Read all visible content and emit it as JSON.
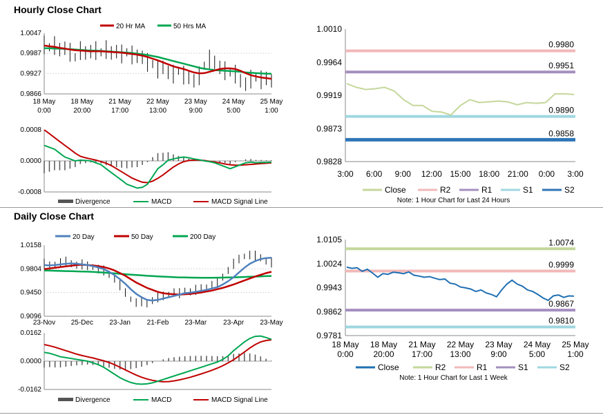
{
  "sections": {
    "hourly_title": "Hourly Close Chart",
    "daily_title": "Daily Close Chart"
  },
  "chart_data": [
    {
      "id": "hourly-price",
      "type": "line",
      "ylim": [
        0.9866,
        1.0047
      ],
      "yticks": [
        "1.0047",
        "0.9987",
        "0.9927",
        "0.9866"
      ],
      "xticks": [
        [
          "18 May",
          "0:00"
        ],
        [
          "18 May",
          "20:00"
        ],
        [
          "21 May",
          "17:00"
        ],
        [
          "22 May",
          "13:00"
        ],
        [
          "23 May",
          "9:00"
        ],
        [
          "24 May",
          "5:00"
        ],
        [
          "25 May",
          "1:00"
        ]
      ],
      "legend": [
        "20 Hr MA",
        "50 Hrs MA"
      ],
      "colors": {
        "price": "#111111",
        "ma20": "#c00000",
        "ma50": "#00a651"
      },
      "series": [
        {
          "name": "Price",
          "values": [
            1.0012,
            1.0005,
            1.001,
            0.9998,
            1.0002,
            0.999,
            0.9975,
            0.9995,
            0.9988,
            0.9992,
            0.9995,
            0.999,
            0.9998,
            0.9988,
            0.9992,
            0.9985,
            0.999,
            0.9982,
            0.9978,
            0.9975,
            0.996,
            0.9955,
            0.994,
            0.9945,
            0.993,
            0.9925,
            0.9935,
            0.9922,
            0.9915,
            0.9905,
            0.992,
            0.995,
            0.997,
            0.996,
            0.9945,
            0.9935,
            0.993,
            0.9925,
            0.9905,
            0.9895,
            0.991,
            0.9915,
            0.9908,
            0.9912,
            0.9905
          ]
        },
        {
          "name": "20 Hr MA",
          "values": [
            1.001,
            1.0008,
            1.0006,
            1.0003,
            1.0001,
            0.9998,
            0.9996,
            0.9995,
            0.9994,
            0.9993,
            0.9993,
            0.9993,
            0.9992,
            0.9991,
            0.999,
            0.9989,
            0.9987,
            0.9985,
            0.9983,
            0.998,
            0.9976,
            0.9971,
            0.9966,
            0.996,
            0.9954,
            0.9948,
            0.9944,
            0.994,
            0.9935,
            0.993,
            0.9927,
            0.9928,
            0.9932,
            0.9936,
            0.994,
            0.9942,
            0.9942,
            0.994,
            0.9935,
            0.9928,
            0.9922,
            0.9918,
            0.9915,
            0.9913,
            0.9911
          ]
        },
        {
          "name": "50 Hrs MA",
          "values": [
            1.0002,
            1.0002,
            1.0001,
            1.0001,
            1.0,
            0.9999,
            0.9998,
            0.9997,
            0.9996,
            0.9995,
            0.9995,
            0.9994,
            0.9993,
            0.9992,
            0.9991,
            0.999,
            0.9989,
            0.9988,
            0.9986,
            0.9984,
            0.9982,
            0.9979,
            0.9976,
            0.9972,
            0.9968,
            0.9964,
            0.996,
            0.9956,
            0.9952,
            0.9948,
            0.9944,
            0.9941,
            0.9939,
            0.9937,
            0.9936,
            0.9935,
            0.9934,
            0.9933,
            0.9932,
            0.993,
            0.9929,
            0.9928,
            0.9927,
            0.9926,
            0.9926
          ]
        }
      ]
    },
    {
      "id": "hourly-macd",
      "type": "line",
      "ylim": [
        -0.0008,
        0.0008
      ],
      "yticks": [
        "0.0008",
        "0.0000",
        "-0.0008"
      ],
      "legend": [
        "Divergence",
        "MACD",
        "MACD Signal Line"
      ],
      "colors": {
        "divergence": "#555555",
        "macd": "#00a651",
        "signal": "#c00000"
      },
      "series": [
        {
          "name": "MACD",
          "values": [
            0.0004,
            0.00035,
            0.0003,
            0.0002,
            0.0001,
            5e-05,
            0.0,
            2e-05,
            1e-05,
            0.0,
            -5e-05,
            -0.0001,
            -0.0002,
            -0.0003,
            -0.0004,
            -0.0005,
            -0.0006,
            -0.00065,
            -0.0007,
            -0.00068,
            -0.0006,
            -0.0004,
            -0.0002,
            -0.0001,
            2e-05,
            5e-05,
            8e-05,
            0.0001,
            8e-05,
            5e-05,
            3e-05,
            0.0,
            -2e-05,
            -5e-05,
            -0.0001,
            -0.00015,
            -0.0002,
            -0.00015,
            -0.0001,
            -5e-05,
            -3e-05,
            -5e-05,
            -4e-05,
            -4e-05,
            -3e-05
          ]
        },
        {
          "name": "MACD Signal Line",
          "values": [
            0.0008,
            0.0007,
            0.0006,
            0.0005,
            0.0004,
            0.0003,
            0.0002,
            0.00012,
            8e-05,
            5e-05,
            2e-05,
            -2e-05,
            -6e-05,
            -0.00012,
            -0.0002,
            -0.00028,
            -0.00036,
            -0.00044,
            -0.0005,
            -0.00055,
            -0.00056,
            -0.00052,
            -0.00045,
            -0.00036,
            -0.00026,
            -0.00016,
            -8e-05,
            -2e-05,
            1e-05,
            2e-05,
            2e-05,
            1e-05,
            -1e-05,
            -3e-05,
            -5e-05,
            -8e-05,
            -0.0001,
            -0.00011,
            -0.00011,
            -0.0001,
            -9e-05,
            -8e-05,
            -7e-05,
            -6e-05,
            -5e-05
          ]
        }
      ]
    },
    {
      "id": "hourly-levels",
      "type": "line",
      "ylim": [
        0.9828,
        1.001
      ],
      "yticks": [
        "1.0010",
        "0.9964",
        "0.9919",
        "0.9873",
        "0.9828"
      ],
      "xticks": [
        "3:00",
        "6:00",
        "9:00",
        "12:00",
        "15:00",
        "18:00",
        "21:00",
        "0:00",
        "3:00"
      ],
      "levels": [
        {
          "name": "R2",
          "value": 0.998,
          "label": "0.9980",
          "color": "#f2b8b8"
        },
        {
          "name": "R1",
          "value": 0.9951,
          "label": "0.9951",
          "color": "#a48fbf"
        },
        {
          "name": "S1",
          "value": 0.989,
          "label": "0.9890",
          "color": "#9fd7e0"
        },
        {
          "name": "S2",
          "value": 0.9858,
          "label": "0.9858",
          "color": "#2e75b6"
        }
      ],
      "close": {
        "name": "Close",
        "color": "#c4d79b",
        "values": [
          0.9935,
          0.993,
          0.9927,
          0.9928,
          0.993,
          0.9925,
          0.9913,
          0.9905,
          0.9905,
          0.9897,
          0.9896,
          0.9892,
          0.9905,
          0.9913,
          0.9909,
          0.991,
          0.9911,
          0.991,
          0.9906,
          0.9909,
          0.9908,
          0.9909,
          0.9921,
          0.9921,
          0.992
        ]
      },
      "legend": [
        "Close",
        "R2",
        "R1",
        "S1",
        "S2"
      ],
      "note": "Note: 1 Hour Chart for Last 24 Hours"
    },
    {
      "id": "daily-price",
      "type": "line",
      "ylim": [
        0.9096,
        1.0158
      ],
      "yticks": [
        "1.0158",
        "0.9804",
        "0.9450",
        "0.9096"
      ],
      "xticks": [
        "23-Nov",
        "25-Dec",
        "23-Jan",
        "21-Feb",
        "23-Mar",
        "23-Apr",
        "23-May"
      ],
      "legend": [
        "20 Day",
        "50 Day",
        "200 Day"
      ],
      "colors": {
        "price": "#111111",
        "d20": "#4f81bd",
        "d50": "#c00000",
        "d200": "#00a651"
      },
      "series": [
        {
          "name": "Price",
          "values": [
            0.988,
            0.985,
            0.987,
            0.99,
            0.991,
            0.988,
            0.986,
            0.987,
            0.985,
            0.983,
            0.98,
            0.978,
            0.972,
            0.965,
            0.956,
            0.945,
            0.935,
            0.93,
            0.932,
            0.928,
            0.933,
            0.938,
            0.94,
            0.942,
            0.945,
            0.944,
            0.947,
            0.946,
            0.949,
            0.951,
            0.953,
            0.956,
            0.96,
            0.968,
            0.978,
            0.988,
            0.995,
            0.999,
            1.001,
            1.0,
            0.997,
            0.992,
            0.99
          ]
        },
        {
          "name": "20 Day",
          "values": [
            0.986,
            0.9855,
            0.986,
            0.987,
            0.988,
            0.9885,
            0.988,
            0.987,
            0.986,
            0.9845,
            0.9825,
            0.98,
            0.976,
            0.971,
            0.965,
            0.958,
            0.95,
            0.943,
            0.938,
            0.934,
            0.933,
            0.934,
            0.936,
            0.938,
            0.94,
            0.942,
            0.944,
            0.945,
            0.946,
            0.9475,
            0.949,
            0.951,
            0.953,
            0.957,
            0.962,
            0.968,
            0.975,
            0.982,
            0.988,
            0.992,
            0.995,
            0.9965,
            0.997
          ]
        },
        {
          "name": "50 Day",
          "values": [
            0.98,
            0.981,
            0.982,
            0.983,
            0.984,
            0.985,
            0.986,
            0.9865,
            0.986,
            0.9855,
            0.9845,
            0.983,
            0.981,
            0.978,
            0.974,
            0.97,
            0.965,
            0.96,
            0.956,
            0.952,
            0.949,
            0.946,
            0.944,
            0.943,
            0.9425,
            0.942,
            0.9425,
            0.943,
            0.944,
            0.945,
            0.9465,
            0.948,
            0.95,
            0.952,
            0.9545,
            0.957,
            0.96,
            0.963,
            0.966,
            0.969,
            0.9715,
            0.974,
            0.976
          ]
        },
        {
          "name": "200 Day",
          "values": [
            0.978,
            0.9778,
            0.9775,
            0.9772,
            0.977,
            0.9768,
            0.9766,
            0.9764,
            0.9762,
            0.9758,
            0.9754,
            0.9748,
            0.9742,
            0.9736,
            0.973,
            0.9724,
            0.9718,
            0.9712,
            0.9706,
            0.97,
            0.9696,
            0.9692,
            0.9688,
            0.9684,
            0.968,
            0.9677,
            0.9675,
            0.9673,
            0.9672,
            0.9671,
            0.9671,
            0.9671,
            0.9672,
            0.9673,
            0.9675,
            0.9677,
            0.968,
            0.9683,
            0.9686,
            0.9689,
            0.9692,
            0.9695,
            0.9698
          ]
        }
      ]
    },
    {
      "id": "daily-macd",
      "type": "line",
      "ylim": [
        -0.0162,
        0.0162
      ],
      "yticks": [
        "0.0162",
        "0.0000",
        "-0.0162"
      ],
      "legend": [
        "Divergence",
        "MACD",
        "MACD Signal Line"
      ],
      "colors": {
        "divergence": "#555555",
        "macd": "#00a651",
        "signal": "#c00000"
      },
      "series": [
        {
          "name": "MACD",
          "values": [
            0.005,
            0.0045,
            0.0035,
            0.0025,
            0.002,
            0.0015,
            0.001,
            0.0005,
            0.0,
            -0.001,
            -0.002,
            -0.0035,
            -0.0055,
            -0.0075,
            -0.0095,
            -0.011,
            -0.0122,
            -0.013,
            -0.0132,
            -0.013,
            -0.0124,
            -0.0115,
            -0.0105,
            -0.0095,
            -0.0085,
            -0.0075,
            -0.0065,
            -0.0055,
            -0.0045,
            -0.0035,
            -0.0025,
            -0.0015,
            -0.0005,
            0.001,
            0.003,
            0.006,
            0.0085,
            0.011,
            0.013,
            0.0142,
            0.0144,
            0.0135,
            0.0125
          ]
        },
        {
          "name": "MACD Signal Line",
          "values": [
            0.0095,
            0.0088,
            0.008,
            0.007,
            0.006,
            0.005,
            0.004,
            0.0032,
            0.0025,
            0.0018,
            0.001,
            0.0002,
            -0.0008,
            -0.002,
            -0.0035,
            -0.005,
            -0.0065,
            -0.008,
            -0.0092,
            -0.0102,
            -0.011,
            -0.0115,
            -0.0118,
            -0.0117,
            -0.0113,
            -0.0107,
            -0.01,
            -0.0092,
            -0.0083,
            -0.0073,
            -0.0063,
            -0.0052,
            -0.004,
            -0.0026,
            -0.001,
            0.0008,
            0.003,
            0.0052,
            0.0075,
            0.0095,
            0.011,
            0.0118,
            0.0122
          ]
        }
      ]
    },
    {
      "id": "daily-levels",
      "type": "line",
      "ylim": [
        0.9781,
        1.0105
      ],
      "yticks": [
        "1.0105",
        "1.0024",
        "0.9943",
        "0.9862",
        "0.9781"
      ],
      "xticks": [
        [
          "18 May",
          "0:00"
        ],
        [
          "18 May",
          "20:00"
        ],
        [
          "21 May",
          "17:00"
        ],
        [
          "22 May",
          "13:00"
        ],
        [
          "23 May",
          "9:00"
        ],
        [
          "24 May",
          "5:00"
        ],
        [
          "25 May",
          "1:00"
        ]
      ],
      "levels": [
        {
          "name": "R2",
          "value": 1.0074,
          "label": "1.0074",
          "color": "#c4d79b"
        },
        {
          "name": "R1",
          "value": 0.9999,
          "label": "0.9999",
          "color": "#f2b8b8"
        },
        {
          "name": "S1",
          "value": 0.9867,
          "label": "0.9867",
          "color": "#a48fbf"
        },
        {
          "name": "S2",
          "value": 0.981,
          "label": "0.9810",
          "color": "#9fd7e0"
        }
      ],
      "close": {
        "name": "Close",
        "color": "#1f6fb2",
        "values": [
          1.0012,
          1.0008,
          1.001,
          0.9998,
          1.0005,
          0.9992,
          0.9978,
          0.999,
          0.9988,
          0.9995,
          0.9993,
          0.999,
          0.9996,
          0.9985,
          0.9982,
          0.9978,
          0.998,
          0.9975,
          0.997,
          0.9972,
          0.9958,
          0.9955,
          0.9945,
          0.9942,
          0.9938,
          0.993,
          0.9935,
          0.9925,
          0.992,
          0.9912,
          0.9935,
          0.9955,
          0.9968,
          0.9955,
          0.9948,
          0.9935,
          0.993,
          0.992,
          0.9908,
          0.99,
          0.9915,
          0.9918,
          0.991,
          0.9915,
          0.9914
        ]
      },
      "legend": [
        "Close",
        "R2",
        "R1",
        "S1",
        "S2"
      ],
      "note": "Note: 1 Hour Chart for Last 1 Week"
    }
  ]
}
